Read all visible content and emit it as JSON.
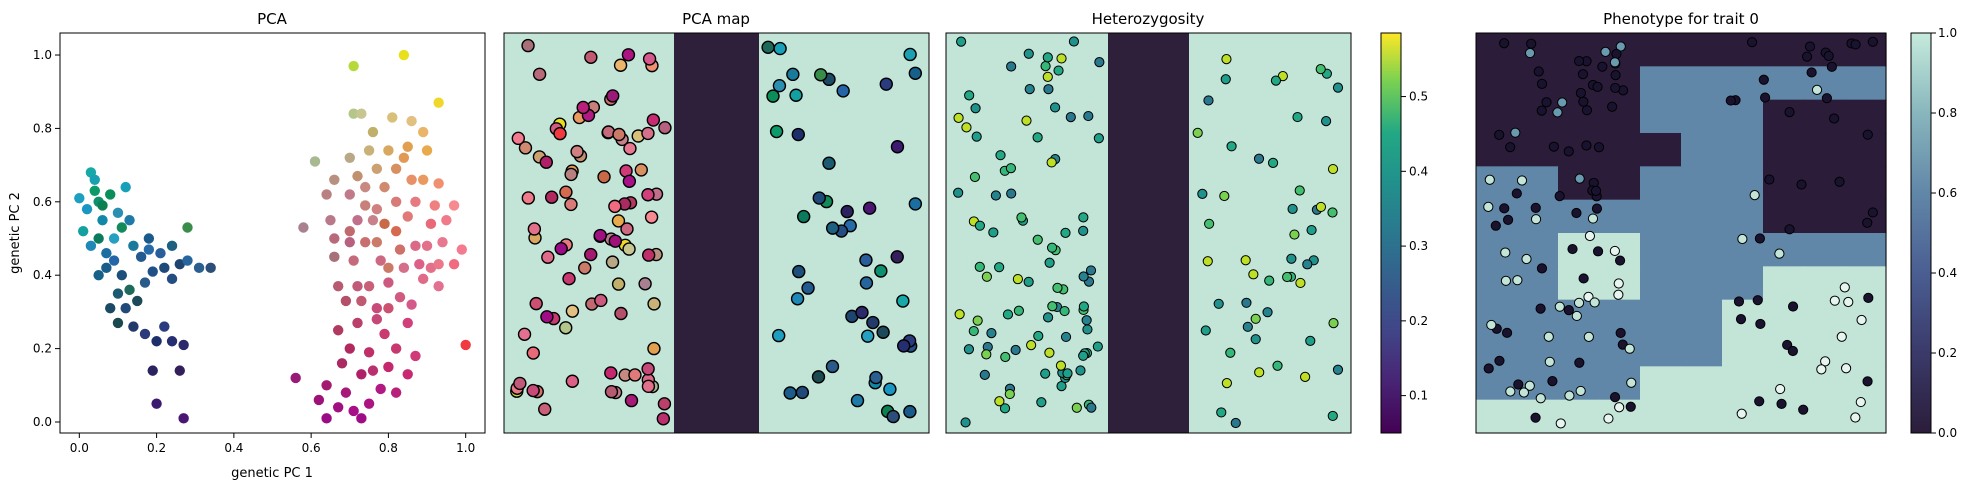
{
  "chart_data": [
    {
      "type": "scatter",
      "title": "PCA",
      "xlabel": "genetic PC 1",
      "ylabel": "genetic PC 2",
      "xlim": [
        -0.05,
        1.05
      ],
      "ylim": [
        -0.03,
        1.06
      ],
      "xticks": [
        0.0,
        0.2,
        0.4,
        0.6,
        0.8,
        1.0
      ],
      "xtick_labels": [
        "0.0",
        "0.2",
        "0.4",
        "0.6",
        "0.8",
        "1.0"
      ],
      "yticks": [
        0.0,
        0.2,
        0.4,
        0.6,
        0.8,
        1.0
      ],
      "ytick_labels": [
        "0.0",
        "0.2",
        "0.4",
        "0.6",
        "0.8",
        "1.0"
      ],
      "grid": false,
      "points": [
        {
          "x": 0.0,
          "y": 0.61,
          "color": "#1e9fc0"
        },
        {
          "x": 0.02,
          "y": 0.58,
          "color": "#1a96c2"
        },
        {
          "x": 0.03,
          "y": 0.68,
          "color": "#17a8a8"
        },
        {
          "x": 0.04,
          "y": 0.66,
          "color": "#1aa0b0"
        },
        {
          "x": 0.05,
          "y": 0.6,
          "color": "#0e8f6e"
        },
        {
          "x": 0.06,
          "y": 0.55,
          "color": "#1288a8"
        },
        {
          "x": 0.08,
          "y": 0.62,
          "color": "#0a8f5a"
        },
        {
          "x": 0.1,
          "y": 0.57,
          "color": "#2a8fb0"
        },
        {
          "x": 0.12,
          "y": 0.64,
          "color": "#17a0b8"
        },
        {
          "x": 0.13,
          "y": 0.55,
          "color": "#1f7aa8"
        },
        {
          "x": 0.01,
          "y": 0.52,
          "color": "#13a0a0"
        },
        {
          "x": 0.03,
          "y": 0.48,
          "color": "#1f88b6"
        },
        {
          "x": 0.05,
          "y": 0.5,
          "color": "#0c7a5c"
        },
        {
          "x": 0.07,
          "y": 0.46,
          "color": "#1a6fa0"
        },
        {
          "x": 0.09,
          "y": 0.5,
          "color": "#25a0c0"
        },
        {
          "x": 0.11,
          "y": 0.53,
          "color": "#138a5a"
        },
        {
          "x": 0.04,
          "y": 0.63,
          "color": "#0d9a6a"
        },
        {
          "x": 0.06,
          "y": 0.59,
          "color": "#0b8050"
        },
        {
          "x": 0.07,
          "y": 0.42,
          "color": "#1a5c8a"
        },
        {
          "x": 0.09,
          "y": 0.44,
          "color": "#2664a8"
        },
        {
          "x": 0.11,
          "y": 0.4,
          "color": "#1d4f7a"
        },
        {
          "x": 0.14,
          "y": 0.48,
          "color": "#1a7a9c"
        },
        {
          "x": 0.16,
          "y": 0.45,
          "color": "#215a8f"
        },
        {
          "x": 0.18,
          "y": 0.47,
          "color": "#266aa8"
        },
        {
          "x": 0.05,
          "y": 0.4,
          "color": "#16608a"
        },
        {
          "x": 0.1,
          "y": 0.35,
          "color": "#1b5a70"
        },
        {
          "x": 0.13,
          "y": 0.36,
          "color": "#1d6a5a"
        },
        {
          "x": 0.08,
          "y": 0.31,
          "color": "#1a4a64"
        },
        {
          "x": 0.12,
          "y": 0.31,
          "color": "#214a7a"
        },
        {
          "x": 0.15,
          "y": 0.33,
          "color": "#1d4a5a"
        },
        {
          "x": 0.17,
          "y": 0.38,
          "color": "#2a5a8a"
        },
        {
          "x": 0.19,
          "y": 0.41,
          "color": "#214f88"
        },
        {
          "x": 0.21,
          "y": 0.46,
          "color": "#2a5e9a"
        },
        {
          "x": 0.22,
          "y": 0.42,
          "color": "#1e4a7a"
        },
        {
          "x": 0.24,
          "y": 0.39,
          "color": "#244e82"
        },
        {
          "x": 0.26,
          "y": 0.43,
          "color": "#1d4570"
        },
        {
          "x": 0.28,
          "y": 0.44,
          "color": "#27669c"
        },
        {
          "x": 0.31,
          "y": 0.42,
          "color": "#2b5f8f"
        },
        {
          "x": 0.34,
          "y": 0.42,
          "color": "#2c4f7a"
        },
        {
          "x": 0.24,
          "y": 0.48,
          "color": "#1d6080"
        },
        {
          "x": 0.18,
          "y": 0.5,
          "color": "#1a5a8a"
        },
        {
          "x": 0.28,
          "y": 0.53,
          "color": "#3a8c4a"
        },
        {
          "x": 0.1,
          "y": 0.27,
          "color": "#1a4a50"
        },
        {
          "x": 0.14,
          "y": 0.26,
          "color": "#223a6a"
        },
        {
          "x": 0.17,
          "y": 0.24,
          "color": "#2a3a7a"
        },
        {
          "x": 0.2,
          "y": 0.22,
          "color": "#1d2f6a"
        },
        {
          "x": 0.22,
          "y": 0.26,
          "color": "#2a3b80"
        },
        {
          "x": 0.24,
          "y": 0.22,
          "color": "#262e72"
        },
        {
          "x": 0.27,
          "y": 0.21,
          "color": "#2d2a6a"
        },
        {
          "x": 0.19,
          "y": 0.14,
          "color": "#2b2260"
        },
        {
          "x": 0.26,
          "y": 0.14,
          "color": "#33205a"
        },
        {
          "x": 0.2,
          "y": 0.05,
          "color": "#3b1a70"
        },
        {
          "x": 0.27,
          "y": 0.01,
          "color": "#4a1672"
        },
        {
          "x": 0.71,
          "y": 0.97,
          "color": "#b7d83a"
        },
        {
          "x": 0.84,
          "y": 1.0,
          "color": "#e8e01a"
        },
        {
          "x": 0.93,
          "y": 0.87,
          "color": "#f0d82a"
        },
        {
          "x": 0.71,
          "y": 0.84,
          "color": "#b4c68a"
        },
        {
          "x": 0.73,
          "y": 0.84,
          "color": "#c8c690"
        },
        {
          "x": 0.76,
          "y": 0.79,
          "color": "#c0b06a"
        },
        {
          "x": 0.81,
          "y": 0.83,
          "color": "#d9c07a"
        },
        {
          "x": 0.86,
          "y": 0.82,
          "color": "#e2c082"
        },
        {
          "x": 0.89,
          "y": 0.79,
          "color": "#eab56a"
        },
        {
          "x": 0.9,
          "y": 0.74,
          "color": "#e8aa4a"
        },
        {
          "x": 0.85,
          "y": 0.75,
          "color": "#e0a050"
        },
        {
          "x": 0.8,
          "y": 0.74,
          "color": "#d8a860"
        },
        {
          "x": 0.75,
          "y": 0.74,
          "color": "#c8b278"
        },
        {
          "x": 0.7,
          "y": 0.72,
          "color": "#b8a888"
        },
        {
          "x": 0.61,
          "y": 0.71,
          "color": "#a8b890"
        },
        {
          "x": 0.84,
          "y": 0.72,
          "color": "#e09a56"
        },
        {
          "x": 0.82,
          "y": 0.69,
          "color": "#d89060"
        },
        {
          "x": 0.77,
          "y": 0.69,
          "color": "#cca070"
        },
        {
          "x": 0.72,
          "y": 0.67,
          "color": "#c09070"
        },
        {
          "x": 0.66,
          "y": 0.66,
          "color": "#b89080"
        },
        {
          "x": 0.74,
          "y": 0.64,
          "color": "#c88a80"
        },
        {
          "x": 0.79,
          "y": 0.64,
          "color": "#d08a70"
        },
        {
          "x": 0.86,
          "y": 0.66,
          "color": "#e89068"
        },
        {
          "x": 0.89,
          "y": 0.66,
          "color": "#ea9a60"
        },
        {
          "x": 0.93,
          "y": 0.65,
          "color": "#f09070"
        },
        {
          "x": 0.64,
          "y": 0.62,
          "color": "#b88080"
        },
        {
          "x": 0.7,
          "y": 0.62,
          "color": "#c07a8a"
        },
        {
          "x": 0.74,
          "y": 0.59,
          "color": "#c8807a"
        },
        {
          "x": 0.77,
          "y": 0.58,
          "color": "#d08080"
        },
        {
          "x": 0.82,
          "y": 0.6,
          "color": "#d87a78"
        },
        {
          "x": 0.87,
          "y": 0.6,
          "color": "#e67a80"
        },
        {
          "x": 0.92,
          "y": 0.59,
          "color": "#f08080"
        },
        {
          "x": 0.97,
          "y": 0.59,
          "color": "#f78a90"
        },
        {
          "x": 0.58,
          "y": 0.53,
          "color": "#a88090"
        },
        {
          "x": 0.65,
          "y": 0.55,
          "color": "#b87a8a"
        },
        {
          "x": 0.7,
          "y": 0.52,
          "color": "#c06a70"
        },
        {
          "x": 0.72,
          "y": 0.55,
          "color": "#c0708a"
        },
        {
          "x": 0.76,
          "y": 0.55,
          "color": "#c8808a"
        },
        {
          "x": 0.79,
          "y": 0.54,
          "color": "#c86a48"
        },
        {
          "x": 0.82,
          "y": 0.52,
          "color": "#d66a50"
        },
        {
          "x": 0.85,
          "y": 0.56,
          "color": "#e07a78"
        },
        {
          "x": 0.91,
          "y": 0.54,
          "color": "#e86a78"
        },
        {
          "x": 0.95,
          "y": 0.55,
          "color": "#f07a8a"
        },
        {
          "x": 0.66,
          "y": 0.5,
          "color": "#b86a7a"
        },
        {
          "x": 0.7,
          "y": 0.49,
          "color": "#b86080"
        },
        {
          "x": 0.74,
          "y": 0.49,
          "color": "#c87070"
        },
        {
          "x": 0.77,
          "y": 0.49,
          "color": "#cc7a6a"
        },
        {
          "x": 0.83,
          "y": 0.47,
          "color": "#d0706a"
        },
        {
          "x": 0.87,
          "y": 0.48,
          "color": "#da6a88"
        },
        {
          "x": 0.9,
          "y": 0.48,
          "color": "#e2708a"
        },
        {
          "x": 0.94,
          "y": 0.49,
          "color": "#e87890"
        },
        {
          "x": 0.99,
          "y": 0.47,
          "color": "#f47a90"
        },
        {
          "x": 0.66,
          "y": 0.45,
          "color": "#a87078"
        },
        {
          "x": 0.71,
          "y": 0.44,
          "color": "#c46a7a"
        },
        {
          "x": 0.78,
          "y": 0.44,
          "color": "#cc6880"
        },
        {
          "x": 0.8,
          "y": 0.42,
          "color": "#cc7a68"
        },
        {
          "x": 0.84,
          "y": 0.42,
          "color": "#d4708a"
        },
        {
          "x": 0.88,
          "y": 0.43,
          "color": "#dc6088"
        },
        {
          "x": 0.91,
          "y": 0.42,
          "color": "#e2708a"
        },
        {
          "x": 0.93,
          "y": 0.43,
          "color": "#ea7888"
        },
        {
          "x": 0.67,
          "y": 0.37,
          "color": "#b85a70"
        },
        {
          "x": 0.72,
          "y": 0.37,
          "color": "#c05a78"
        },
        {
          "x": 0.75,
          "y": 0.37,
          "color": "#c86078"
        },
        {
          "x": 0.8,
          "y": 0.38,
          "color": "#cc5a80"
        },
        {
          "x": 0.83,
          "y": 0.34,
          "color": "#d05a80"
        },
        {
          "x": 0.89,
          "y": 0.39,
          "color": "#e06a8a"
        },
        {
          "x": 0.93,
          "y": 0.37,
          "color": "#e27090"
        },
        {
          "x": 0.69,
          "y": 0.33,
          "color": "#b4506a"
        },
        {
          "x": 0.73,
          "y": 0.33,
          "color": "#c05a70"
        },
        {
          "x": 0.77,
          "y": 0.31,
          "color": "#c84a78"
        },
        {
          "x": 0.8,
          "y": 0.31,
          "color": "#cc5070"
        },
        {
          "x": 0.86,
          "y": 0.32,
          "color": "#d4588a"
        },
        {
          "x": 0.77,
          "y": 0.28,
          "color": "#c44878"
        },
        {
          "x": 0.72,
          "y": 0.27,
          "color": "#b8406a"
        },
        {
          "x": 0.67,
          "y": 0.25,
          "color": "#b03a60"
        },
        {
          "x": 0.79,
          "y": 0.24,
          "color": "#c83a70"
        },
        {
          "x": 0.85,
          "y": 0.27,
          "color": "#d0407a"
        },
        {
          "x": 0.7,
          "y": 0.2,
          "color": "#b02a60"
        },
        {
          "x": 0.75,
          "y": 0.19,
          "color": "#c03068"
        },
        {
          "x": 0.82,
          "y": 0.2,
          "color": "#c83870"
        },
        {
          "x": 0.87,
          "y": 0.18,
          "color": "#d03a78"
        },
        {
          "x": 0.68,
          "y": 0.16,
          "color": "#aa2a62"
        },
        {
          "x": 0.73,
          "y": 0.13,
          "color": "#b02068"
        },
        {
          "x": 0.76,
          "y": 0.14,
          "color": "#b8306e"
        },
        {
          "x": 0.8,
          "y": 0.15,
          "color": "#c4286e"
        },
        {
          "x": 0.85,
          "y": 0.13,
          "color": "#c82a72"
        },
        {
          "x": 0.56,
          "y": 0.12,
          "color": "#9a1a78"
        },
        {
          "x": 0.64,
          "y": 0.1,
          "color": "#a41a70"
        },
        {
          "x": 0.69,
          "y": 0.08,
          "color": "#a81a78"
        },
        {
          "x": 0.78,
          "y": 0.09,
          "color": "#b01a82"
        },
        {
          "x": 0.82,
          "y": 0.08,
          "color": "#b8207a"
        },
        {
          "x": 0.62,
          "y": 0.06,
          "color": "#9e107a"
        },
        {
          "x": 0.67,
          "y": 0.04,
          "color": "#a01080"
        },
        {
          "x": 0.71,
          "y": 0.03,
          "color": "#a81088"
        },
        {
          "x": 0.75,
          "y": 0.05,
          "color": "#ac1482"
        },
        {
          "x": 0.64,
          "y": 0.01,
          "color": "#9a0c86"
        },
        {
          "x": 0.73,
          "y": 0.01,
          "color": "#a00c86"
        },
        {
          "x": 1.0,
          "y": 0.21,
          "color": "#f03a40"
        },
        {
          "x": 0.97,
          "y": 0.43,
          "color": "#f06a80"
        }
      ]
    },
    {
      "type": "scatter",
      "title": "PCA map",
      "xlim": [
        0,
        1
      ],
      "ylim": [
        0,
        1
      ],
      "background": "#c2e5d8",
      "barrier": {
        "x0": 0.4,
        "x1": 0.6,
        "color": "#2e1f3a"
      },
      "point_source": "repeat of PCA colors placed at spatial positions"
    },
    {
      "type": "scatter",
      "title": "Heterozygosity",
      "xlim": [
        0,
        1
      ],
      "ylim": [
        0,
        1
      ],
      "background": "#c2e5d8",
      "barrier": {
        "x0": 0.4,
        "x1": 0.6,
        "color": "#2e1f3a"
      },
      "colorbar": {
        "cmap": "viridis",
        "min": 0.05,
        "max": 0.585,
        "ticks": [
          0.1,
          0.2,
          0.3,
          0.4,
          0.5
        ],
        "tick_labels": [
          "0.1",
          "0.2",
          "0.3",
          "0.4",
          "0.5"
        ]
      }
    },
    {
      "type": "heatmap",
      "title": "Phenotype for trait 0",
      "xlim": [
        0,
        1
      ],
      "ylim": [
        0,
        1
      ],
      "colorbar": {
        "cmap": "mako_r",
        "min": 0.0,
        "max": 1.0,
        "ticks": [
          0.0,
          0.2,
          0.4,
          0.6,
          0.8,
          1.0
        ],
        "tick_labels": [
          "0.0",
          "0.2",
          "0.4",
          "0.6",
          "0.8",
          "1.0"
        ]
      }
    }
  ]
}
